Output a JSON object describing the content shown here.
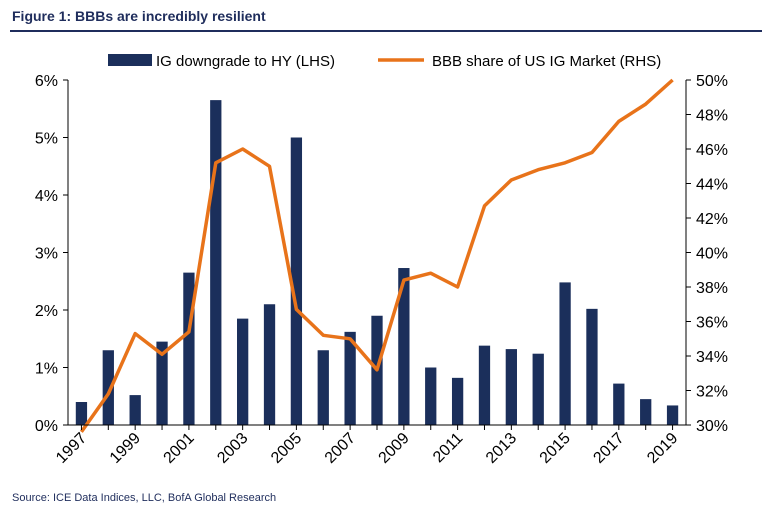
{
  "figure": {
    "title": "Figure 1: BBBs are incredibly resilient",
    "source": "Source:  ICE Data Indices, LLC, BofA Global Research"
  },
  "chart_data": {
    "type": "bar+line",
    "x_tick_labels": [
      "1997",
      "1999",
      "2001",
      "2003",
      "2005",
      "2007",
      "2009",
      "2011",
      "2013",
      "2015",
      "2017",
      "2019"
    ],
    "x": [
      1997,
      1998,
      1999,
      2000,
      2001,
      2002,
      2003,
      2004,
      2005,
      2006,
      2007,
      2008,
      2009,
      2010,
      2011,
      2012,
      2013,
      2014,
      2015,
      2016,
      2017,
      2018,
      2019
    ],
    "series": [
      {
        "name": "IG downgrade to HY (LHS)",
        "type": "bar",
        "axis": "left",
        "color": "#1b2f5b",
        "values": [
          0.4,
          1.3,
          0.52,
          1.45,
          2.65,
          5.65,
          1.85,
          2.1,
          5.0,
          1.3,
          1.62,
          1.9,
          2.73,
          1.0,
          0.82,
          1.38,
          1.32,
          1.24,
          2.48,
          2.02,
          0.72,
          0.45,
          0.34
        ]
      },
      {
        "name": "BBB share of US IG Market (RHS)",
        "type": "line",
        "axis": "right",
        "color": "#e8731a",
        "values": [
          29.6,
          31.8,
          35.3,
          34.1,
          35.4,
          45.2,
          46.0,
          45.0,
          36.7,
          35.2,
          35.0,
          33.2,
          38.4,
          38.8,
          38.0,
          42.7,
          44.2,
          44.8,
          45.2,
          45.8,
          47.6,
          48.6,
          50.0
        ]
      }
    ],
    "left_axis": {
      "ylim": [
        0,
        6
      ],
      "ticks": [
        "0%",
        "1%",
        "2%",
        "3%",
        "4%",
        "5%",
        "6%"
      ]
    },
    "right_axis": {
      "ylim": [
        30,
        50
      ],
      "ticks": [
        "30%",
        "32%",
        "34%",
        "36%",
        "38%",
        "40%",
        "42%",
        "44%",
        "46%",
        "48%",
        "50%"
      ]
    },
    "legend": "top"
  }
}
